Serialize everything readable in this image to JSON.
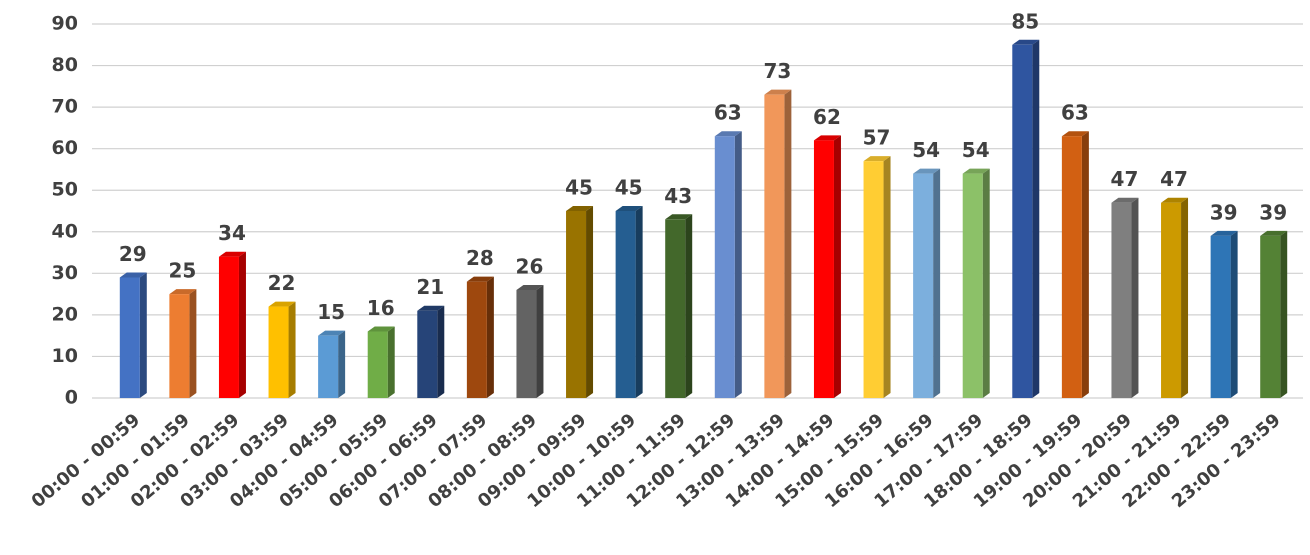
{
  "chart_data": {
    "type": "bar3d",
    "categories": [
      "00:00 - 00:59",
      "01:00 - 01:59",
      "02:00 - 02:59",
      "03:00 - 03:59",
      "04:00 - 04:59",
      "05:00 - 05:59",
      "06:00 - 06:59",
      "07:00 - 07:59",
      "08:00 - 08:59",
      "09:00 - 09:59",
      "10:00 - 10:59",
      "11:00 - 11:59",
      "12:00 - 12:59",
      "13:00 - 13:59",
      "14:00 - 14:59",
      "15:00 - 15:59",
      "16:00 - 16:59",
      "17:00 - 17:59",
      "18:00 - 18:59",
      "19:00 - 19:59",
      "20:00 - 20:59",
      "21:00 - 21:59",
      "22:00 - 22:59",
      "23:00 - 23:59"
    ],
    "values": [
      29,
      25,
      34,
      22,
      15,
      16,
      21,
      28,
      26,
      45,
      45,
      43,
      63,
      73,
      62,
      57,
      54,
      54,
      85,
      63,
      47,
      47,
      39,
      39
    ],
    "colors": [
      "#4472c4",
      "#ed7d31",
      "#ff0000",
      "#ffc000",
      "#5b9bd5",
      "#70ad47",
      "#264478",
      "#9e480e",
      "#636363",
      "#997300",
      "#255e91",
      "#43682b",
      "#698ed0",
      "#f1975a",
      "#ff0000",
      "#ffcd33",
      "#7cafdd",
      "#8cc168",
      "#2f55a0",
      "#d26012",
      "#7f7f7f",
      "#cc9a00",
      "#2e75b6",
      "#548235"
    ],
    "ylim": [
      0,
      90
    ],
    "yticks": [
      0,
      10,
      20,
      30,
      40,
      50,
      60,
      70,
      80,
      90
    ],
    "grid": true
  }
}
